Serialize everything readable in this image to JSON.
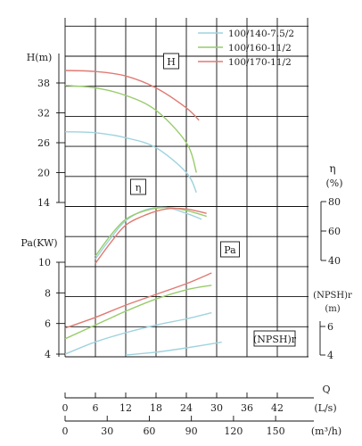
{
  "chart_data": {
    "type": "line",
    "legend": {
      "placement": "top-right",
      "entries": [
        {
          "name": "100/140-7.5/2",
          "color": "#9fd3de"
        },
        {
          "name": "100/160-11/2",
          "color": "#97cc6a"
        },
        {
          "name": "100/170-11/2",
          "color": "#e07a72"
        }
      ]
    },
    "grid": true,
    "x_axes": {
      "q_ls": {
        "label": "Q",
        "unit": "(L/s)",
        "range": [
          0,
          54
        ],
        "ticks": [
          "0",
          "6",
          "12",
          "18",
          "24",
          "30",
          "36",
          "42"
        ]
      },
      "q_m3h": {
        "label": "(m³/h)",
        "range": [
          0,
          194.4
        ],
        "ticks": [
          "0",
          "30",
          "60",
          "90",
          "120",
          "150"
        ]
      }
    },
    "y_axes": {
      "H": {
        "label": "H(m)",
        "range": [
          14,
          44
        ],
        "ticks": [
          "14",
          "20",
          "26",
          "32",
          "38"
        ]
      },
      "eta": {
        "label": "η",
        "unit": "(%)",
        "range": [
          40,
          80
        ],
        "ticks": [
          "40",
          "60",
          "80"
        ]
      },
      "Pa": {
        "label": "Pa(KW)",
        "range": [
          4,
          10
        ],
        "ticks": [
          "4",
          "6",
          "8",
          "10"
        ]
      },
      "NPSHr": {
        "label": "(NPSH)r",
        "unit": "(m)",
        "range": [
          4,
          6
        ],
        "ticks": [
          "4",
          "6"
        ]
      }
    },
    "boxed_labels": {
      "H": "H",
      "eta": "η",
      "Pa": "Pa",
      "NPSHr": "(NPSH)r"
    },
    "series": [
      {
        "name": "100/140-7.5/2",
        "group": "H",
        "x": [
          0,
          6,
          12,
          18,
          24,
          26
        ],
        "y": [
          28.2,
          28,
          27,
          25,
          20,
          16
        ]
      },
      {
        "name": "100/160-11/2",
        "group": "H",
        "x": [
          0,
          6,
          12,
          18,
          24,
          26
        ],
        "y": [
          37.5,
          37,
          35.5,
          32.5,
          26,
          20
        ]
      },
      {
        "name": "100/170-11/2",
        "group": "H",
        "x": [
          0,
          6,
          12,
          18,
          24,
          26.5
        ],
        "y": [
          40.5,
          40.3,
          39.4,
          37,
          33,
          30.5
        ]
      },
      {
        "name": "100/140-7.5/2",
        "group": "eta",
        "x": [
          6,
          9,
          12,
          16,
          20,
          24,
          27
        ],
        "y": [
          41,
          55,
          67,
          74.5,
          76,
          72,
          68
        ]
      },
      {
        "name": "100/160-11/2",
        "group": "eta",
        "x": [
          6,
          9,
          12,
          16,
          20,
          24,
          28
        ],
        "y": [
          43,
          57,
          68,
          74,
          76,
          74,
          70
        ]
      },
      {
        "name": "100/170-11/2",
        "group": "eta",
        "x": [
          6,
          9,
          12,
          16,
          20,
          24,
          28
        ],
        "y": [
          38,
          52,
          64,
          71,
          75,
          75,
          72
        ]
      },
      {
        "name": "100/140-7.5/2",
        "group": "Pa",
        "x": [
          0,
          6,
          12,
          18,
          24,
          29
        ],
        "y": [
          4.0,
          4.8,
          5.4,
          5.9,
          6.3,
          6.7
        ]
      },
      {
        "name": "100/160-11/2",
        "group": "Pa",
        "x": [
          0,
          6,
          12,
          18,
          24,
          29
        ],
        "y": [
          5.0,
          5.9,
          6.8,
          7.6,
          8.2,
          8.5
        ]
      },
      {
        "name": "100/170-11/2",
        "group": "Pa",
        "x": [
          0,
          6,
          12,
          18,
          24,
          29
        ],
        "y": [
          5.7,
          6.4,
          7.2,
          7.9,
          8.6,
          9.3
        ]
      },
      {
        "name": "100/140-7.5/2",
        "group": "NPSHr",
        "x": [
          12,
          18,
          24,
          31
        ],
        "y": [
          4.0,
          4.2,
          4.5,
          4.9
        ]
      }
    ]
  }
}
